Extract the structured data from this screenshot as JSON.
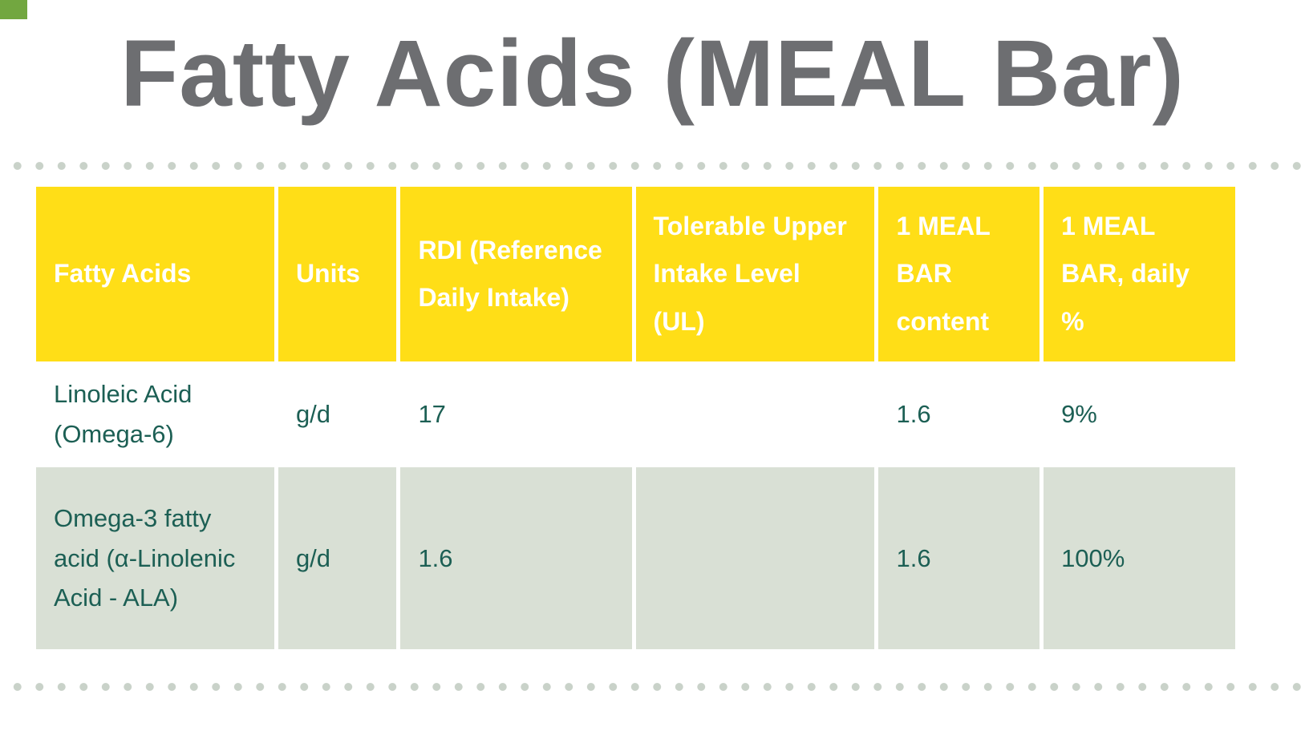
{
  "title": "Fatty Acids (MEAL Bar)",
  "table": {
    "headers": [
      "Fatty Acids",
      "Units",
      "RDI (Reference Daily Intake)",
      "Tolerable Upper Intake Level (UL)",
      "1 MEAL BAR content",
      "1 MEAL BAR, daily %"
    ],
    "rows": [
      {
        "cells": [
          "Linoleic Acid (Omega-6)",
          "g/d",
          "17",
          "",
          "1.6",
          "9%"
        ]
      },
      {
        "cells": [
          "Omega-3 fatty acid (α-Linolenic Acid - ALA)",
          "g/d",
          "1.6",
          "",
          "1.6",
          "100%"
        ]
      }
    ]
  },
  "colors": {
    "header_bg": "#ffde17",
    "header_text": "#ffffff",
    "row_alt_bg": "#d9e0d5",
    "data_text": "#1c5f54",
    "title_text": "#6d6e71",
    "dot": "#c9d2c9",
    "corner_accent": "#72a740"
  }
}
